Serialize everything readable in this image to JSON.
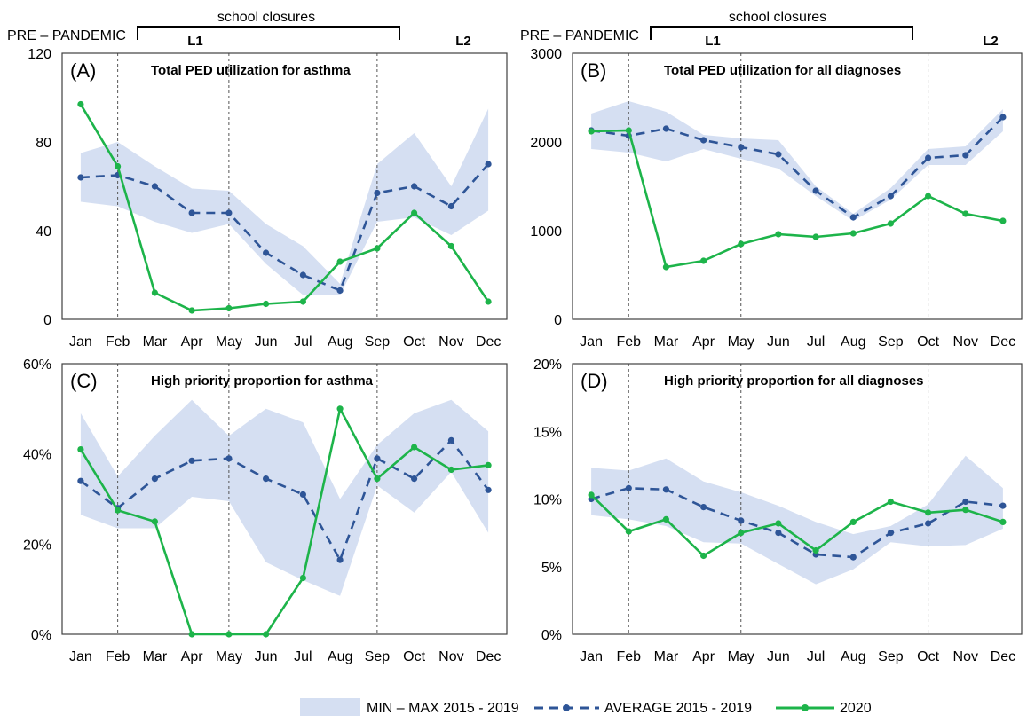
{
  "colors": {
    "band": "#d5dff2",
    "average": "#2e5597",
    "series2020": "#1db44a",
    "frame": "#3f3f3f",
    "divider": "#555555"
  },
  "months": [
    "Jan",
    "Feb",
    "Mar",
    "Apr",
    "May",
    "Jun",
    "Jul",
    "Aug",
    "Sep",
    "Oct",
    "Nov",
    "Dec"
  ],
  "annotations": {
    "pre_pandemic": "PRE – PANDEMIC",
    "school_closures": "school closures",
    "l1": "L1",
    "l2": "L2"
  },
  "legend": [
    {
      "label": "MIN – MAX 2015 - 2019",
      "kind": "band"
    },
    {
      "label": "AVERAGE 2015 - 2019",
      "kind": "average"
    },
    {
      "label": "2020",
      "kind": "series2020"
    }
  ],
  "chart_data": [
    {
      "type": "line",
      "panel_label": "(A)",
      "title": "Total PED utilization for asthma",
      "categories": [
        "Jan",
        "Feb",
        "Mar",
        "Apr",
        "May",
        "Jun",
        "Jul",
        "Aug",
        "Sep",
        "Oct",
        "Nov",
        "Dec"
      ],
      "ylim": [
        0,
        120
      ],
      "yticks": [
        0,
        40,
        80,
        120
      ],
      "ytick_labels": [
        "0",
        "40",
        "80",
        "120"
      ],
      "band_min": [
        53,
        51,
        44,
        39,
        43,
        25,
        11,
        11,
        44,
        46,
        38,
        49
      ],
      "band_max": [
        75,
        80,
        69,
        59,
        58,
        43,
        33,
        16,
        70,
        84,
        60,
        95
      ],
      "series": [
        {
          "name": "AVERAGE 2015 - 2019",
          "values": [
            64,
            65,
            60,
            48,
            48,
            30,
            20,
            13,
            57,
            60,
            51,
            70
          ]
        },
        {
          "name": "2020",
          "values": [
            97,
            69,
            12,
            4,
            5,
            7,
            8,
            26,
            32,
            48,
            33,
            8
          ]
        }
      ]
    },
    {
      "type": "line",
      "panel_label": "(B)",
      "title": "Total PED utilization for all diagnoses",
      "categories": [
        "Jan",
        "Feb",
        "Mar",
        "Apr",
        "May",
        "Jun",
        "Jul",
        "Aug",
        "Sep",
        "Oct",
        "Nov",
        "Dec"
      ],
      "ylim": [
        0,
        3000
      ],
      "yticks": [
        0,
        1000,
        2000,
        3000
      ],
      "ytick_labels": [
        "0",
        "1000",
        "2000",
        "3000"
      ],
      "band_min": [
        1920,
        1880,
        1780,
        1920,
        1810,
        1700,
        1390,
        1110,
        1350,
        1740,
        1740,
        2120
      ],
      "band_max": [
        2320,
        2460,
        2340,
        2080,
        2040,
        2020,
        1500,
        1190,
        1480,
        1920,
        1950,
        2370
      ],
      "series": [
        {
          "name": "AVERAGE 2015 - 2019",
          "values": [
            2130,
            2070,
            2150,
            2020,
            1940,
            1860,
            1450,
            1150,
            1390,
            1820,
            1850,
            2280
          ]
        },
        {
          "name": "2020",
          "values": [
            2120,
            2130,
            590,
            660,
            850,
            960,
            930,
            970,
            1080,
            1390,
            1190,
            1110
          ]
        }
      ]
    },
    {
      "type": "line",
      "panel_label": "(C)",
      "title": "High priority proportion for asthma",
      "categories": [
        "Jan",
        "Feb",
        "Mar",
        "Apr",
        "May",
        "Jun",
        "Jul",
        "Aug",
        "Sep",
        "Oct",
        "Nov",
        "Dec"
      ],
      "ylim": [
        0,
        0.6
      ],
      "yticks": [
        0,
        0.2,
        0.4,
        0.6
      ],
      "ytick_labels": [
        "0%",
        "20%",
        "40%",
        "60%"
      ],
      "band_min": [
        0.265,
        0.235,
        0.235,
        0.305,
        0.295,
        0.16,
        0.12,
        0.085,
        0.33,
        0.27,
        0.36,
        0.225
      ],
      "band_max": [
        0.49,
        0.35,
        0.44,
        0.52,
        0.44,
        0.5,
        0.47,
        0.3,
        0.42,
        0.49,
        0.52,
        0.45
      ],
      "series": [
        {
          "name": "AVERAGE 2015 - 2019",
          "values": [
            0.34,
            0.28,
            0.345,
            0.385,
            0.39,
            0.345,
            0.31,
            0.165,
            0.39,
            0.345,
            0.43,
            0.32
          ]
        },
        {
          "name": "2020",
          "values": [
            0.41,
            0.275,
            0.25,
            0.0,
            0.0,
            0.0,
            0.125,
            0.5,
            0.345,
            0.415,
            0.365,
            0.375
          ]
        }
      ]
    },
    {
      "type": "line",
      "panel_label": "(D)",
      "title": "High priority proportion for all diagnoses",
      "categories": [
        "Jan",
        "Feb",
        "Mar",
        "Apr",
        "May",
        "Jun",
        "Jul",
        "Aug",
        "Sep",
        "Oct",
        "Nov",
        "Dec"
      ],
      "ylim": [
        0,
        0.2
      ],
      "yticks": [
        0,
        0.05,
        0.1,
        0.15,
        0.2
      ],
      "ytick_labels": [
        "0%",
        "5%",
        "10%",
        "15%",
        "20%"
      ],
      "band_min": [
        0.088,
        0.085,
        0.08,
        0.068,
        0.067,
        0.052,
        0.037,
        0.048,
        0.068,
        0.065,
        0.066,
        0.078
      ],
      "band_max": [
        0.123,
        0.121,
        0.13,
        0.113,
        0.105,
        0.095,
        0.083,
        0.074,
        0.08,
        0.096,
        0.132,
        0.108
      ],
      "series": [
        {
          "name": "AVERAGE 2015 - 2019",
          "values": [
            0.1,
            0.108,
            0.107,
            0.094,
            0.084,
            0.075,
            0.059,
            0.057,
            0.075,
            0.082,
            0.098,
            0.095
          ]
        },
        {
          "name": "2020",
          "values": [
            0.103,
            0.076,
            0.085,
            0.058,
            0.075,
            0.082,
            0.062,
            0.083,
            0.098,
            0.09,
            0.092,
            0.083
          ]
        }
      ]
    }
  ]
}
